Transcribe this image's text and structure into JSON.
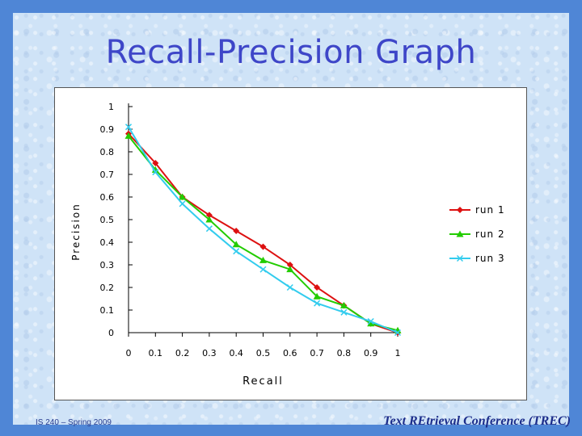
{
  "slide": {
    "title": "Recall-Precision Graph",
    "footer_left": "IS 240 – Spring 2009",
    "footer_right": "Text REtrieval Conference (TREC)"
  },
  "chart_data": {
    "type": "line",
    "xlabel": "Recall",
    "ylabel": "Precision",
    "xlim": [
      0,
      1
    ],
    "ylim": [
      0,
      1
    ],
    "x": [
      0,
      0.1,
      0.2,
      0.3,
      0.4,
      0.5,
      0.6,
      0.7,
      0.8,
      0.9,
      1
    ],
    "x_tick_labels": [
      "0",
      "0.1",
      "0.2",
      "0.3",
      "0.4",
      "0.5",
      "0.6",
      "0.7",
      "0.8",
      "0.9",
      "1"
    ],
    "y_tick_values": [
      0,
      0.1,
      0.2,
      0.3,
      0.4,
      0.5,
      0.6,
      0.7,
      0.8,
      0.9,
      1
    ],
    "y_tick_labels": [
      "0",
      "0.1",
      "0.2",
      "0.3",
      "0.4",
      "0.5",
      "0.6",
      "0.7",
      "0.8",
      "0.9",
      "1"
    ],
    "grid": false,
    "legend_position": "right",
    "series": [
      {
        "name": "run 1",
        "color": "#dd1111",
        "marker": "diamond",
        "values": [
          0.88,
          0.75,
          0.6,
          0.52,
          0.45,
          0.38,
          0.3,
          0.2,
          0.12,
          0.04,
          0.0
        ]
      },
      {
        "name": "run 2",
        "color": "#22cc00",
        "marker": "triangle",
        "values": [
          0.87,
          0.72,
          0.6,
          0.5,
          0.39,
          0.32,
          0.28,
          0.16,
          0.12,
          0.04,
          0.01
        ]
      },
      {
        "name": "run 3",
        "color": "#33ccee",
        "marker": "x",
        "values": [
          0.91,
          0.71,
          0.57,
          0.46,
          0.36,
          0.28,
          0.2,
          0.13,
          0.09,
          0.05,
          0.0
        ]
      }
    ]
  }
}
